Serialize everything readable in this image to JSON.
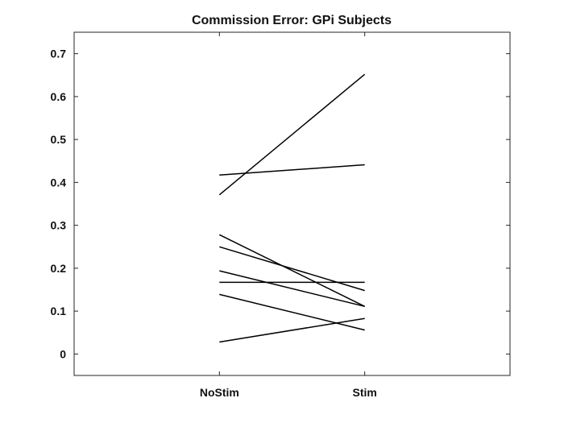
{
  "chart_data": {
    "type": "line",
    "title": "Commission Error: GPi Subjects",
    "xlabel": "",
    "ylabel": "",
    "categories": [
      "NoStim",
      "Stim"
    ],
    "xlim": [
      0,
      3
    ],
    "ylim": [
      -0.05,
      0.75
    ],
    "yticks": [
      0,
      0.1,
      0.2,
      0.3,
      0.4,
      0.5,
      0.6,
      0.7
    ],
    "grid": false,
    "legend": "none",
    "line_color": "#000000",
    "series": [
      {
        "values": [
          0.371,
          0.652
        ]
      },
      {
        "values": [
          0.417,
          0.441
        ]
      },
      {
        "values": [
          0.278,
          0.111
        ]
      },
      {
        "values": [
          0.25,
          0.148
        ]
      },
      {
        "values": [
          0.194,
          0.111
        ]
      },
      {
        "values": [
          0.167,
          0.167
        ]
      },
      {
        "values": [
          0.139,
          0.056
        ]
      },
      {
        "values": [
          0.028,
          0.083
        ]
      }
    ]
  }
}
